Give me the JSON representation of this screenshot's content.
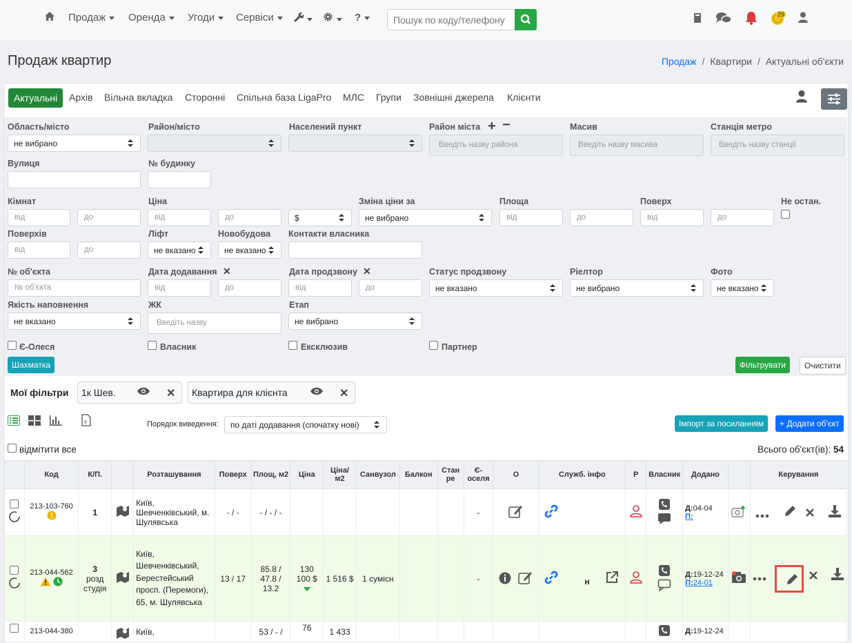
{
  "nav": {
    "items": [
      "Продаж",
      "Оренда",
      "Угоди",
      "Сервіси"
    ],
    "help": "?",
    "search_placeholder": "Пошук по коду/телефону",
    "badge": "29"
  },
  "header": {
    "title": "Продаж квартир",
    "breadcrumb": [
      "Продаж",
      "Квартири",
      "Актуальні об'єкти"
    ]
  },
  "tabs": [
    "Актуальні",
    "Архів",
    "Вільна вкладка",
    "Сторонні",
    "Спільна база LigaPro",
    "МЛС",
    "Групи",
    "Зовнішні джерела",
    "Клієнти"
  ],
  "filters": {
    "oblast": "Область/місто",
    "oblast_val": "не вибрано",
    "rayon": "Район/місто",
    "punkt": "Населений пункт",
    "rayon_mista": "Район міста",
    "rayon_mista_ph": "Введіть назву района",
    "masyv": "Масив",
    "masyv_ph": "Введіть назву масива",
    "metro": "Станція метро",
    "metro_ph": "Введіть назву станції",
    "street": "Вулиця",
    "house": "№ будинку",
    "rooms": "Кімнат",
    "price": "Ціна",
    "currency": "$",
    "price_change": "Зміна ціни за",
    "price_change_val": "не вибрано",
    "area": "Площа",
    "floor": "Поверх",
    "not_last": "Не остан.",
    "floors": "Поверхів",
    "lift": "Ліфт",
    "lift_val": "не вказано",
    "newbuild": "Новобудова",
    "newbuild_val": "не вказано",
    "owner_contacts": "Контакти власника",
    "obj_no": "№ об'єкта",
    "obj_no_ph": "№ об'єкта",
    "date_added": "Дата додавання",
    "date_call": "Дата продзвону",
    "call_status": "Статус продзвону",
    "call_status_val": "не вказано",
    "realtor": "Ріелтор",
    "realtor_val": "не вибрано",
    "photo": "Фото",
    "photo_val": "не вказано",
    "quality": "Якість наповнення",
    "quality_val": "не вказано",
    "jk": "ЖК",
    "jk_ph": "Введіть назву",
    "stage": "Етап",
    "stage_val": "не вибрано",
    "from": "від",
    "to": "до",
    "x": "✕",
    "c1": "Є-Олеся",
    "c2": "Власник",
    "c3": "Ексклюзив",
    "c4": "Партнер",
    "chess": "Шахматка",
    "apply": "Фільтрувати",
    "clear": "Очистити"
  },
  "myfilters": {
    "label": "Мої фільтри",
    "chips": [
      "1к Шев.",
      "Квартира для клієнта"
    ]
  },
  "toolbar": {
    "order_label": "Порядок виведення:",
    "order_val": "по даті додавання (спочатку нові)",
    "import": "Імпорт за посиланням",
    "add": "+ Додати об'єкт",
    "mark_all": "відмітити все",
    "total_label": "Всього об'єкт(ів):",
    "total": "54"
  },
  "table": {
    "headers": [
      "",
      "Код",
      "К/П.",
      "",
      "Розташування",
      "Поверх",
      "Площ, м2",
      "Ціна",
      "Ціна/ м2",
      "Санвузол",
      "Балкон",
      "Стан ре",
      "Є- оселя",
      "О",
      "Служб. інфо",
      "Р",
      "Власник",
      "Додано",
      "",
      "Керування"
    ],
    "rows": [
      {
        "code": "213-103-760",
        "rooms": "1",
        "rooms2": "",
        "loc": "Київ, Шевченківський, м. Шулявська",
        "floor": "- / -",
        "area": "- / - / -",
        "price": "",
        "ppm": "",
        "bath": "",
        "dash": "-",
        "n": "",
        "d": "Д:",
        "dv": "04-04",
        "p": "П:",
        "pv": ""
      },
      {
        "code": "213-044-562",
        "rooms": "3",
        "rooms2": "розд студія",
        "loc": "Київ, Шевченківський, Берестейський просп. (Перемоги), 65, м. Шулявська",
        "floor": "13 / 17",
        "area": "85.8 / 47.8 / 13.2",
        "price": "130 100 $",
        "ppm": "1 516 $",
        "bath": "1 сумісн",
        "dash": "-",
        "n": "н",
        "d": "Д:",
        "dv": "19-12-24",
        "p": "П:",
        "pv": "24-01"
      },
      {
        "code": "213-044-380",
        "rooms": "",
        "rooms2": "",
        "loc": "Київ,",
        "floor": "",
        "area": "53 / - /",
        "price": "76",
        "ppm": "1 433",
        "bath": "",
        "dash": "",
        "n": "",
        "d": "Д:",
        "dv": "19-12-24",
        "p": "",
        "pv": ""
      }
    ]
  },
  "colors": {
    "green": "#28a745",
    "blue": "#0d6efd",
    "red": "#dc3545",
    "highlight": "#e74c3c"
  }
}
